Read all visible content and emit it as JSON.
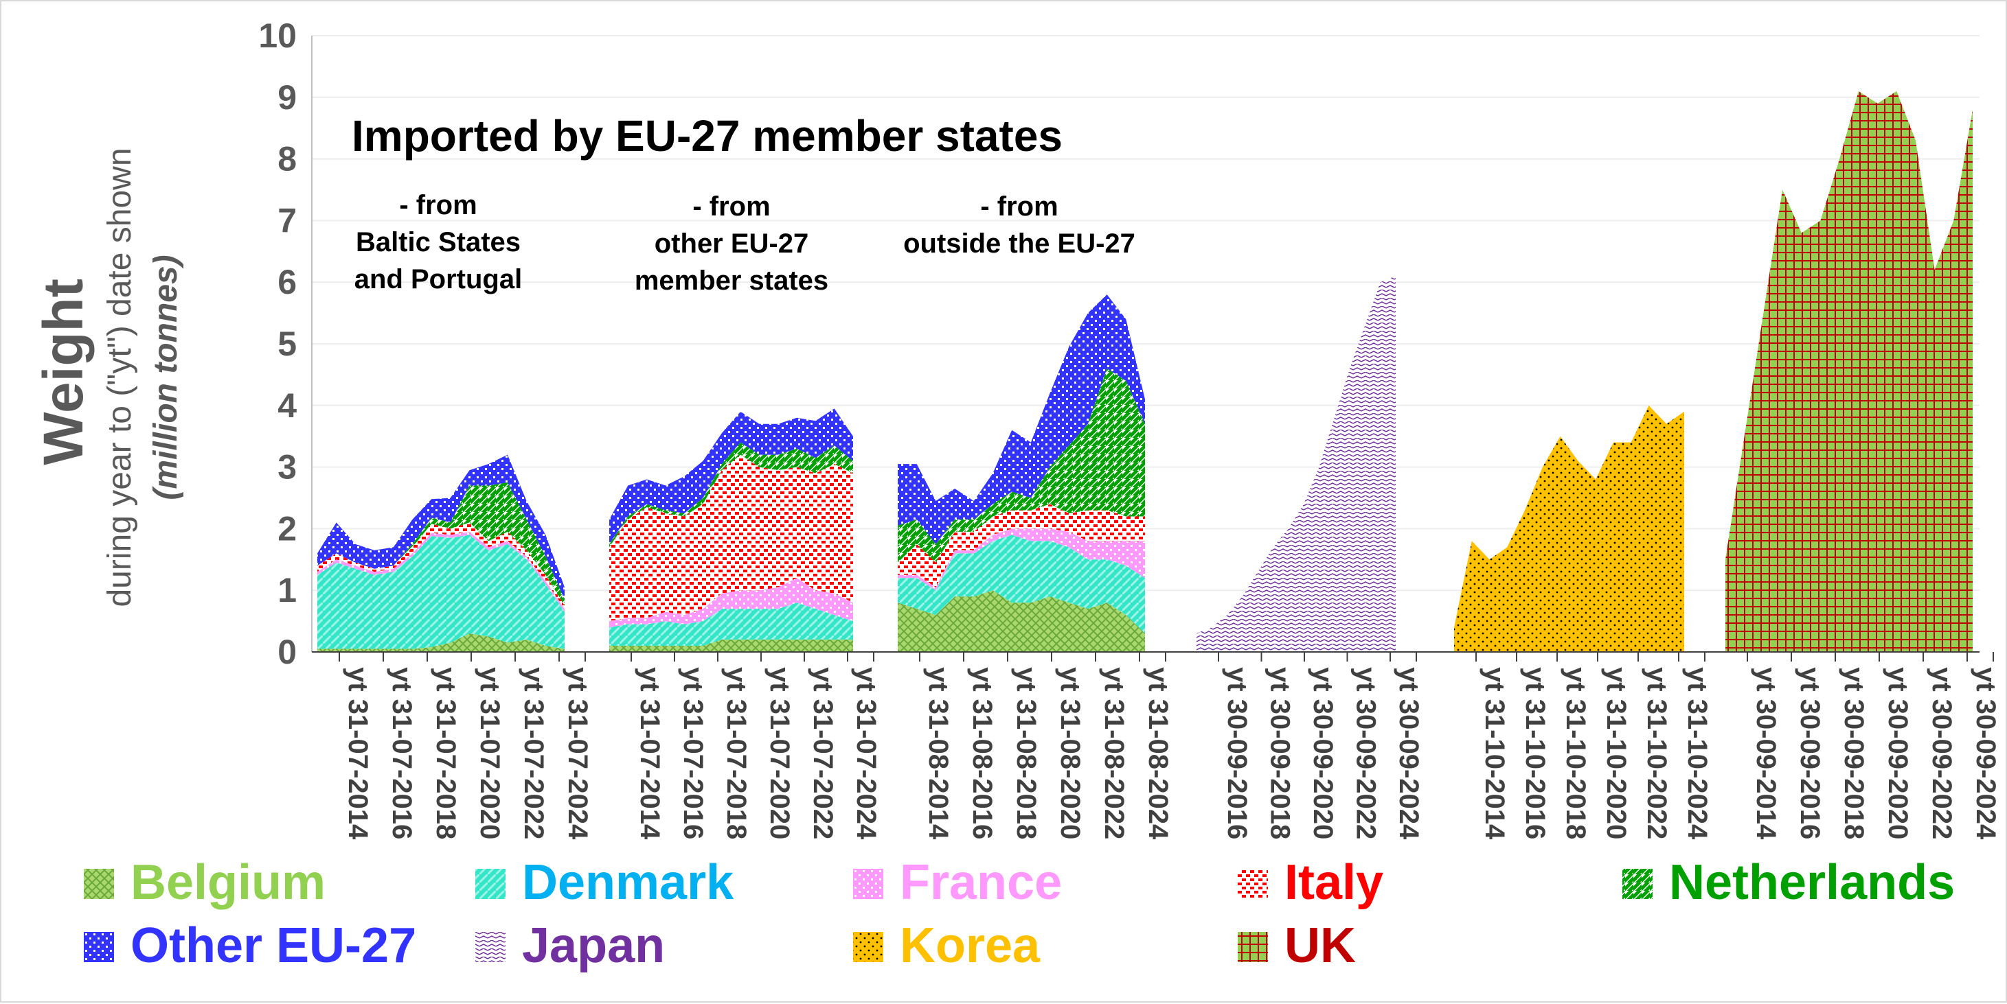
{
  "chart_data": {
    "type": "area",
    "title": "Imported by EU-27 member states",
    "ylabel": {
      "main": "Weight",
      "sub": "during year to (\"yt\") date shown",
      "unit": "(million tonnes)"
    },
    "ylim": [
      0,
      10
    ],
    "yticks": [
      "0",
      "1",
      "2",
      "3",
      "4",
      "5",
      "6",
      "7",
      "8",
      "9",
      "10"
    ],
    "grid": true,
    "legend_position": "bottom",
    "annotations": [
      {
        "lines": [
          "- from",
          "Baltic States",
          "and Portugal"
        ]
      },
      {
        "lines": [
          "- from",
          "other EU-27",
          "member states"
        ]
      },
      {
        "lines": [
          "- from",
          "outside the EU-27"
        ]
      }
    ],
    "legend": [
      {
        "key": "belgium",
        "label": "Belgium",
        "color": "#92d050"
      },
      {
        "key": "denmark",
        "label": "Denmark",
        "color": "#00b0f0"
      },
      {
        "key": "france",
        "label": "France",
        "color": "#ff99ff"
      },
      {
        "key": "italy",
        "label": "Italy",
        "color": "#ff0000"
      },
      {
        "key": "netherlands",
        "label": "Netherlands",
        "color": "#00a000"
      },
      {
        "key": "other",
        "label": "Other EU-27",
        "color": "#3333ff"
      },
      {
        "key": "japan",
        "label": "Japan",
        "color": "#7030a0"
      },
      {
        "key": "korea",
        "label": "Korea",
        "color": "#ffc000"
      },
      {
        "key": "uk",
        "label": "UK",
        "color": "#c00000"
      }
    ],
    "panels": [
      {
        "name": "Baltic States and Portugal",
        "xticks": [
          "yt 31-07-2014",
          "yt 31-07-2016",
          "yt 31-07-2018",
          "yt 31-07-2020",
          "yt 31-07-2022",
          "yt 31-07-2024"
        ],
        "series": [
          {
            "key": "belgium",
            "values": [
              0.05,
              0.05,
              0.05,
              0.05,
              0.05,
              0.05,
              0.08,
              0.15,
              0.3,
              0.25,
              0.15,
              0.2,
              0.1,
              0.05
            ]
          },
          {
            "key": "denmark",
            "values": [
              1.2,
              1.4,
              1.3,
              1.2,
              1.25,
              1.5,
              1.8,
              1.7,
              1.6,
              1.4,
              1.6,
              1.3,
              1.0,
              0.6
            ]
          },
          {
            "key": "france",
            "values": [
              0.05,
              0.05,
              0.05,
              0.05,
              0.05,
              0.05,
              0.05,
              0.05,
              0.05,
              0.05,
              0.05,
              0.05,
              0.05,
              0.05
            ]
          },
          {
            "key": "italy",
            "values": [
              0.1,
              0.1,
              0.05,
              0.05,
              0.05,
              0.1,
              0.15,
              0.1,
              0.15,
              0.1,
              0.15,
              0.1,
              0.1,
              0.05
            ]
          },
          {
            "key": "netherlands",
            "values": [
              0.0,
              0.0,
              0.0,
              0.0,
              0.0,
              0.05,
              0.1,
              0.1,
              0.6,
              0.9,
              0.8,
              0.5,
              0.3,
              0.1
            ]
          },
          {
            "key": "other",
            "values": [
              0.2,
              0.5,
              0.3,
              0.3,
              0.3,
              0.4,
              0.3,
              0.4,
              0.25,
              0.35,
              0.45,
              0.3,
              0.35,
              0.2
            ]
          }
        ]
      },
      {
        "name": "other EU-27 member states",
        "xticks": [
          "yt 31-07-2014",
          "yt 31-07-2016",
          "yt 31-07-2018",
          "yt 31-07-2020",
          "yt 31-07-2022",
          "yt 31-07-2024"
        ],
        "series": [
          {
            "key": "belgium",
            "values": [
              0.1,
              0.1,
              0.1,
              0.1,
              0.1,
              0.1,
              0.2,
              0.2,
              0.2,
              0.2,
              0.2,
              0.2,
              0.2,
              0.2
            ]
          },
          {
            "key": "denmark",
            "values": [
              0.3,
              0.35,
              0.35,
              0.4,
              0.35,
              0.4,
              0.5,
              0.5,
              0.5,
              0.5,
              0.6,
              0.5,
              0.4,
              0.3
            ]
          },
          {
            "key": "france",
            "values": [
              0.1,
              0.1,
              0.1,
              0.15,
              0.15,
              0.2,
              0.25,
              0.3,
              0.3,
              0.35,
              0.4,
              0.3,
              0.35,
              0.3
            ]
          },
          {
            "key": "italy",
            "values": [
              1.2,
              1.6,
              1.8,
              1.6,
              1.6,
              1.7,
              2.0,
              2.2,
              2.0,
              1.9,
              1.8,
              1.9,
              2.1,
              2.1
            ]
          },
          {
            "key": "netherlands",
            "values": [
              0.05,
              0.05,
              0.05,
              0.05,
              0.05,
              0.1,
              0.1,
              0.2,
              0.2,
              0.25,
              0.3,
              0.25,
              0.3,
              0.2
            ]
          },
          {
            "key": "other",
            "values": [
              0.4,
              0.5,
              0.4,
              0.4,
              0.6,
              0.6,
              0.5,
              0.5,
              0.5,
              0.5,
              0.5,
              0.6,
              0.6,
              0.4
            ]
          }
        ]
      },
      {
        "name": "outside the EU-27",
        "xticks": [
          "yt 31-08-2014",
          "yt 31-08-2016",
          "yt 31-08-2018",
          "yt 31-08-2020",
          "yt 31-08-2022",
          "yt 31-08-2024"
        ],
        "series": [
          {
            "key": "belgium",
            "values": [
              0.8,
              0.7,
              0.6,
              0.9,
              0.9,
              1.0,
              0.8,
              0.8,
              0.9,
              0.8,
              0.7,
              0.8,
              0.6,
              0.3
            ]
          },
          {
            "key": "denmark",
            "values": [
              0.4,
              0.5,
              0.4,
              0.7,
              0.7,
              0.8,
              1.1,
              1.0,
              0.9,
              0.9,
              0.8,
              0.7,
              0.8,
              0.9
            ]
          },
          {
            "key": "france",
            "values": [
              0.05,
              0.05,
              0.05,
              0.05,
              0.05,
              0.1,
              0.1,
              0.2,
              0.2,
              0.25,
              0.3,
              0.3,
              0.4,
              0.6
            ]
          },
          {
            "key": "italy",
            "values": [
              0.2,
              0.5,
              0.4,
              0.3,
              0.3,
              0.3,
              0.3,
              0.3,
              0.4,
              0.3,
              0.5,
              0.5,
              0.4,
              0.4
            ]
          },
          {
            "key": "netherlands",
            "values": [
              0.6,
              0.4,
              0.3,
              0.2,
              0.2,
              0.2,
              0.3,
              0.2,
              0.6,
              1.1,
              1.4,
              2.3,
              2.2,
              1.5
            ]
          },
          {
            "key": "other",
            "values": [
              1.0,
              0.9,
              0.7,
              0.5,
              0.3,
              0.5,
              1.0,
              0.9,
              1.2,
              1.6,
              1.8,
              1.2,
              1.0,
              0.4
            ]
          }
        ]
      },
      {
        "name": "Japan",
        "xticks": [
          "yt 30-09-2016",
          "yt 30-09-2018",
          "yt 30-09-2020",
          "yt 30-09-2022",
          "yt 30-09-2024"
        ],
        "series": [
          {
            "key": "japan",
            "values": [
              0.3,
              0.4,
              0.6,
              0.9,
              1.3,
              1.7,
              2.0,
              2.4,
              3.0,
              3.8,
              4.6,
              5.3,
              6.0,
              6.1
            ]
          }
        ]
      },
      {
        "name": "Korea",
        "xticks": [
          "yt 31-10-2014",
          "yt 31-10-2016",
          "yt 31-10-2018",
          "yt 31-10-2020",
          "yt 31-10-2022",
          "yt 31-10-2024"
        ],
        "series": [
          {
            "key": "korea",
            "values": [
              0.4,
              1.8,
              1.5,
              1.7,
              2.3,
              3.0,
              3.5,
              3.1,
              2.8,
              3.4,
              3.4,
              4.0,
              3.7,
              3.9
            ]
          }
        ]
      },
      {
        "name": "UK",
        "xticks": [
          "yt 30-09-2014",
          "yt 30-09-2016",
          "yt 30-09-2018",
          "yt 30-09-2020",
          "yt 30-09-2022",
          "yt 30-09-2024"
        ],
        "series": [
          {
            "key": "uk",
            "values": [
              1.5,
              3.5,
              5.5,
              7.5,
              6.8,
              7.0,
              8.0,
              9.1,
              8.9,
              9.1,
              8.3,
              6.2,
              7.0,
              8.8
            ]
          }
        ]
      }
    ]
  }
}
